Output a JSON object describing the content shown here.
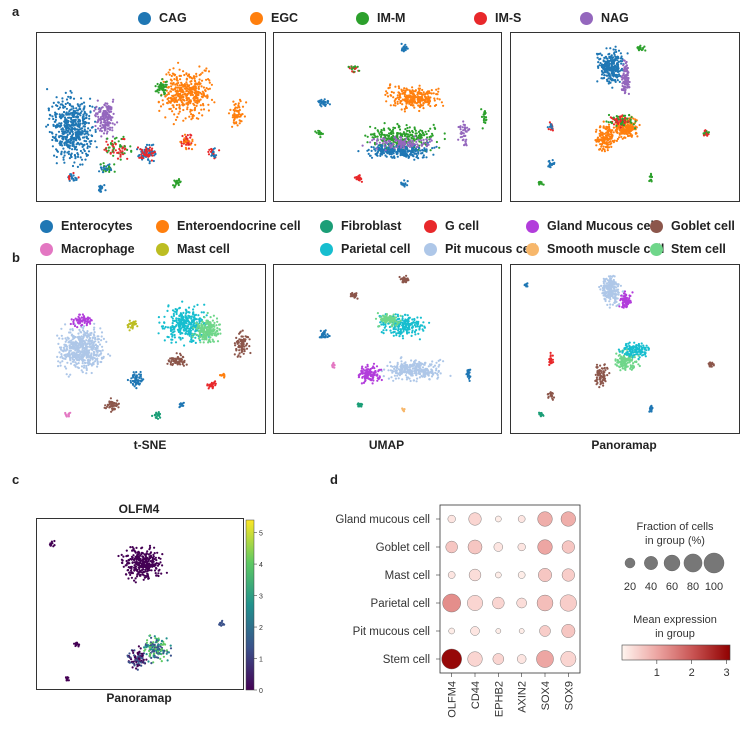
{
  "figure": {
    "panel_letters": [
      "a",
      "b",
      "c",
      "d"
    ],
    "condition_legend": [
      {
        "label": "CAG",
        "color": "#1f77b4"
      },
      {
        "label": "EGC",
        "color": "#ff7f0e"
      },
      {
        "label": "IM-M",
        "color": "#2ca02c"
      },
      {
        "label": "IM-S",
        "color": "#e8282b"
      },
      {
        "label": "NAG",
        "color": "#9467bd"
      }
    ],
    "celltype_legend": [
      {
        "label": "Enterocytes",
        "color": "#1f77b4"
      },
      {
        "label": "Enteroendocrine cell",
        "color": "#ff7f0e"
      },
      {
        "label": "Fibroblast",
        "color": "#1b9e77"
      },
      {
        "label": "G cell",
        "color": "#e8282b"
      },
      {
        "label": "Gland Mucous cell",
        "color": "#b23ddb"
      },
      {
        "label": "Goblet cell",
        "color": "#8c564b"
      },
      {
        "label": "Macrophage",
        "color": "#e377c2"
      },
      {
        "label": "Mast cell",
        "color": "#bcbd22"
      },
      {
        "label": "Parietal cell",
        "color": "#17becf"
      },
      {
        "label": "Pit mucous cell",
        "color": "#aec7e8"
      },
      {
        "label": "Smooth muscle cell",
        "color": "#f7b76b"
      },
      {
        "label": "Stem cell",
        "color": "#6fd68a"
      }
    ],
    "embedding_captions": [
      "t-SNE",
      "UMAP",
      "Panoramap"
    ],
    "panel_c": {
      "title": "OLFM4",
      "caption": "Panoramap",
      "colorbar_ticks": [
        "0",
        "1",
        "2",
        "3",
        "4",
        "5"
      ],
      "colorbar_max": 5.4
    },
    "panel_d": {
      "size_legend_title_1": "Fraction of cells",
      "size_legend_title_2": "in group (%)",
      "size_ticks": [
        "20",
        "40",
        "60",
        "80",
        "100"
      ],
      "color_legend_title_1": "Mean expression",
      "color_legend_title_2": "in group",
      "color_ticks": [
        "1",
        "2",
        "3"
      ]
    }
  },
  "chart_data": [
    {
      "type": "scatter",
      "title": "",
      "description_series": "t-SNE embedding colored by condition",
      "series": [
        {
          "name": "CAG"
        },
        {
          "name": "EGC"
        },
        {
          "name": "IM-M"
        },
        {
          "name": "IM-S"
        },
        {
          "name": "NAG"
        }
      ]
    },
    {
      "type": "scatter",
      "xlabel": "t-SNE",
      "series": [
        {
          "name": "Enterocytes"
        },
        {
          "name": "Enteroendocrine cell"
        },
        {
          "name": "Fibroblast"
        },
        {
          "name": "G cell"
        },
        {
          "name": "Gland Mucous cell"
        },
        {
          "name": "Goblet cell"
        },
        {
          "name": "Macrophage"
        },
        {
          "name": "Mast cell"
        },
        {
          "name": "Parietal cell"
        },
        {
          "name": "Pit mucous cell"
        },
        {
          "name": "Smooth muscle cell"
        },
        {
          "name": "Stem cell"
        }
      ]
    },
    {
      "type": "heatmap",
      "title": "",
      "rows": [
        "Gland mucous cell",
        "Goblet cell",
        "Mast cell",
        "Parietal cell",
        "Pit mucous cell",
        "Stem cell"
      ],
      "columns": [
        "OLFM4",
        "CD44",
        "EPHB2",
        "AXIN2",
        "SOX4",
        "SOX9"
      ],
      "fraction_percent": [
        [
          10,
          35,
          5,
          8,
          50,
          50
        ],
        [
          30,
          45,
          15,
          10,
          50,
          35
        ],
        [
          8,
          30,
          5,
          8,
          40,
          35
        ],
        [
          80,
          55,
          30,
          20,
          60,
          65
        ],
        [
          5,
          15,
          3,
          3,
          25,
          40
        ],
        [
          100,
          50,
          25,
          15,
          70,
          55
        ]
      ],
      "mean_expression": [
        [
          0.2,
          0.4,
          0.1,
          0.2,
          0.9,
          0.9
        ],
        [
          0.6,
          0.6,
          0.2,
          0.2,
          1.0,
          0.6
        ],
        [
          0.2,
          0.3,
          0.1,
          0.1,
          0.6,
          0.5
        ],
        [
          1.3,
          0.4,
          0.4,
          0.3,
          0.7,
          0.5
        ],
        [
          0.1,
          0.2,
          0.1,
          0.1,
          0.5,
          0.6
        ],
        [
          3.0,
          0.4,
          0.4,
          0.2,
          1.0,
          0.4
        ]
      ],
      "color_range": [
        0,
        3.1
      ]
    }
  ]
}
